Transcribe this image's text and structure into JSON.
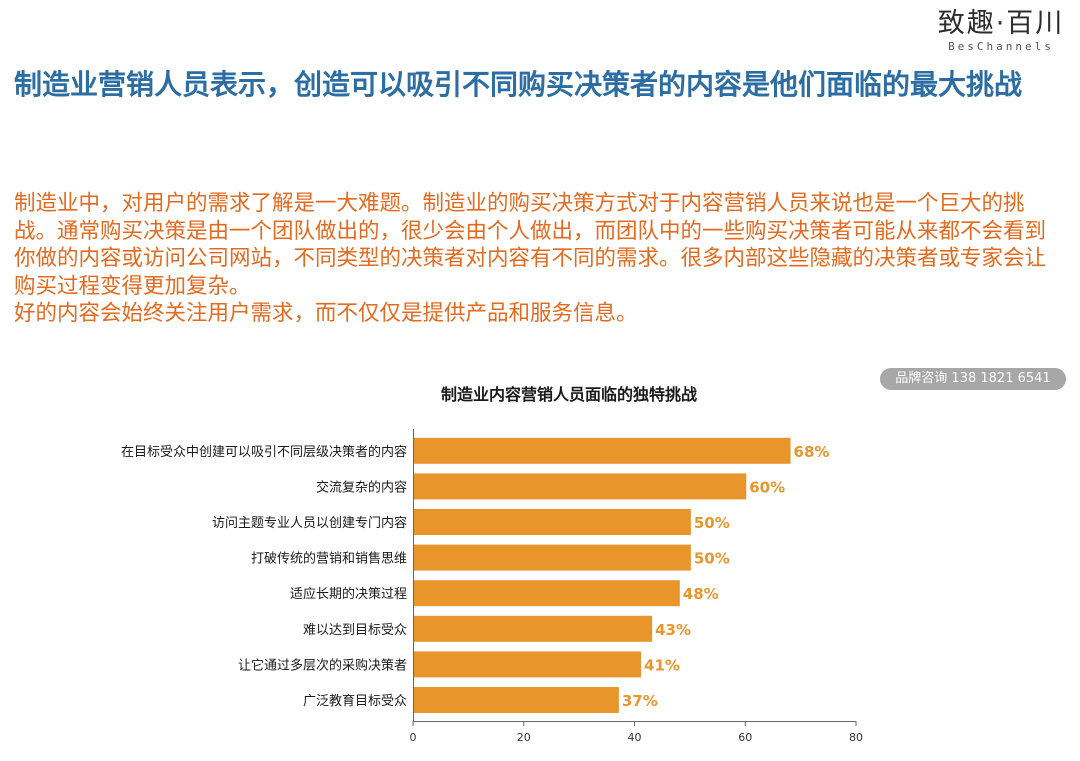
{
  "logo": {
    "main": "致趣·百川",
    "sub": "BesChannels"
  },
  "title": "制造业营销人员表示，创造可以吸引不同购买决策者的内容是他们面临的最大挑战",
  "paragraphs": [
    "制造业中，对用户的需求了解是一大难题。制造业的购买决策方式对于内容营销人员来说也是一个巨大的挑战。通常购买决策是由一个团队做出的，很少会由个人做出，而团队中的一些购买决策者可能从来都不会看到你做的内容或访问公司网站，不同类型的决策者对内容有不同的需求。很多内部这些隐藏的决策者或专家会让购买过程变得更加复杂。",
    "好的内容会始终关注用户需求，而不仅仅是提供产品和服务信息。"
  ],
  "watermark": "品牌咨询 138 1821 6541",
  "colors": {
    "title": "#2c6ea3",
    "body_text": "#e36a1e",
    "bar": "#e8962c",
    "bar_label": "#e8962c"
  },
  "chart_data": {
    "type": "bar",
    "orientation": "horizontal",
    "title": "制造业内容营销人员面临的独特挑战",
    "categories": [
      "在目标受众中创建可以吸引不同层级决策者的内容",
      "交流复杂的内容",
      "访问主题专业人员以创建专门内容",
      "打破传统的营销和销售思维",
      "适应长期的决策过程",
      "难以达到目标受众",
      "让它通过多层次的采购决策者",
      "广泛教育目标受众"
    ],
    "values": [
      68,
      60,
      50,
      50,
      48,
      43,
      41,
      37
    ],
    "data_labels": [
      "68%",
      "60%",
      "50%",
      "50%",
      "48%",
      "43%",
      "41%",
      "37%"
    ],
    "xlim": [
      0,
      80
    ],
    "xticks": [
      "0",
      "20",
      "40",
      "60",
      "80"
    ],
    "grid": false
  }
}
